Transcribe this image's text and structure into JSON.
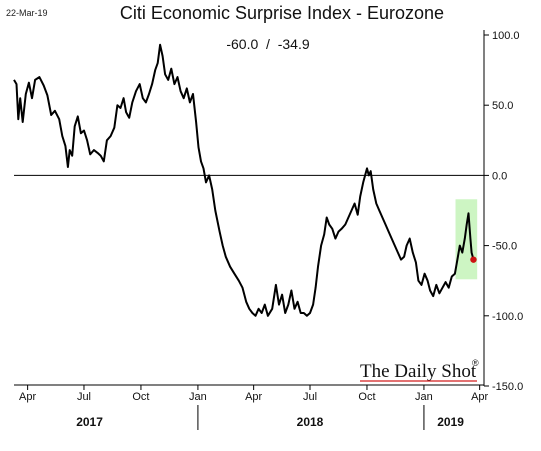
{
  "date_stamp": "22-Mar-19",
  "watermark": "The Daily Shot",
  "watermark_mark": "®",
  "chart_data": {
    "type": "line",
    "title": "Citi Economic Surprise Index - Eurozone",
    "readout": "-60.0  /  -34.9",
    "xlabel": "",
    "ylabel": "",
    "ylim": [
      -150,
      100
    ],
    "yticks": [
      100,
      50,
      0,
      -50,
      -100,
      -150
    ],
    "ytick_labels": [
      "100.0",
      "50.0",
      "0.0",
      "-50.0",
      "-100.0",
      "-150.0"
    ],
    "x_range": [
      "2017-03-10",
      "2019-04-08"
    ],
    "xticks": [
      {
        "date": "2017-04-01",
        "label": "Apr"
      },
      {
        "date": "2017-07-01",
        "label": "Jul"
      },
      {
        "date": "2017-10-01",
        "label": "Oct"
      },
      {
        "date": "2018-01-01",
        "label": "Jan"
      },
      {
        "date": "2018-04-01",
        "label": "Apr"
      },
      {
        "date": "2018-07-01",
        "label": "Jul"
      },
      {
        "date": "2018-10-01",
        "label": "Oct"
      },
      {
        "date": "2019-01-01",
        "label": "Jan"
      },
      {
        "date": "2019-04-01",
        "label": "Apr"
      }
    ],
    "year_labels": [
      {
        "label": "2017",
        "center": "2017-07-10"
      },
      {
        "label": "2018",
        "center": "2018-07-01"
      },
      {
        "label": "2019",
        "center": "2019-02-13"
      }
    ],
    "year_separators": [
      "2018-01-01",
      "2019-01-01"
    ],
    "zero_line": 0,
    "highlight": {
      "x": [
        "2019-02-21",
        "2019-03-28"
      ],
      "y": [
        -74,
        -17
      ],
      "color": "#cdf5c3"
    },
    "series": [
      {
        "color": "#000000",
        "points": [
          [
            "2017-03-10",
            68
          ],
          [
            "2017-03-14",
            65
          ],
          [
            "2017-03-17",
            40
          ],
          [
            "2017-03-20",
            55
          ],
          [
            "2017-03-24",
            38
          ],
          [
            "2017-03-29",
            58
          ],
          [
            "2017-04-03",
            66
          ],
          [
            "2017-04-08",
            55
          ],
          [
            "2017-04-13",
            68
          ],
          [
            "2017-04-20",
            70
          ],
          [
            "2017-04-27",
            64
          ],
          [
            "2017-05-03",
            57
          ],
          [
            "2017-05-09",
            43
          ],
          [
            "2017-05-15",
            46
          ],
          [
            "2017-05-22",
            40
          ],
          [
            "2017-05-27",
            28
          ],
          [
            "2017-06-01",
            21
          ],
          [
            "2017-06-05",
            6
          ],
          [
            "2017-06-08",
            18
          ],
          [
            "2017-06-12",
            14
          ],
          [
            "2017-06-16",
            35
          ],
          [
            "2017-06-21",
            42
          ],
          [
            "2017-06-26",
            30
          ],
          [
            "2017-07-01",
            32
          ],
          [
            "2017-07-06",
            25
          ],
          [
            "2017-07-11",
            15
          ],
          [
            "2017-07-17",
            18
          ],
          [
            "2017-07-23",
            16
          ],
          [
            "2017-07-28",
            14
          ],
          [
            "2017-08-02",
            10
          ],
          [
            "2017-08-07",
            25
          ],
          [
            "2017-08-13",
            28
          ],
          [
            "2017-08-19",
            34
          ],
          [
            "2017-08-24",
            50
          ],
          [
            "2017-08-29",
            48
          ],
          [
            "2017-09-03",
            55
          ],
          [
            "2017-09-07",
            45
          ],
          [
            "2017-09-12",
            41
          ],
          [
            "2017-09-17",
            52
          ],
          [
            "2017-09-23",
            60
          ],
          [
            "2017-09-29",
            65
          ],
          [
            "2017-10-04",
            55
          ],
          [
            "2017-10-09",
            52
          ],
          [
            "2017-10-14",
            58
          ],
          [
            "2017-10-19",
            65
          ],
          [
            "2017-10-24",
            75
          ],
          [
            "2017-10-28",
            80
          ],
          [
            "2017-11-01",
            93
          ],
          [
            "2017-11-05",
            85
          ],
          [
            "2017-11-09",
            72
          ],
          [
            "2017-11-14",
            68
          ],
          [
            "2017-11-19",
            76
          ],
          [
            "2017-11-24",
            65
          ],
          [
            "2017-11-29",
            70
          ],
          [
            "2017-12-04",
            60
          ],
          [
            "2017-12-09",
            55
          ],
          [
            "2017-12-14",
            62
          ],
          [
            "2017-12-19",
            52
          ],
          [
            "2017-12-24",
            58
          ],
          [
            "2017-12-29",
            38
          ],
          [
            "2018-01-02",
            20
          ],
          [
            "2018-01-06",
            10
          ],
          [
            "2018-01-10",
            5
          ],
          [
            "2018-01-14",
            -5
          ],
          [
            "2018-01-19",
            0
          ],
          [
            "2018-01-24",
            -10
          ],
          [
            "2018-01-29",
            -25
          ],
          [
            "2018-02-05",
            -40
          ],
          [
            "2018-02-10",
            -50
          ],
          [
            "2018-02-15",
            -58
          ],
          [
            "2018-02-22",
            -65
          ],
          [
            "2018-03-01",
            -70
          ],
          [
            "2018-03-08",
            -75
          ],
          [
            "2018-03-14",
            -80
          ],
          [
            "2018-03-20",
            -90
          ],
          [
            "2018-03-25",
            -95
          ],
          [
            "2018-03-30",
            -98
          ],
          [
            "2018-04-04",
            -100
          ],
          [
            "2018-04-09",
            -95
          ],
          [
            "2018-04-14",
            -98
          ],
          [
            "2018-04-19",
            -92
          ],
          [
            "2018-04-24",
            -100
          ],
          [
            "2018-05-01",
            -95
          ],
          [
            "2018-05-07",
            -78
          ],
          [
            "2018-05-12",
            -92
          ],
          [
            "2018-05-17",
            -85
          ],
          [
            "2018-05-22",
            -98
          ],
          [
            "2018-05-27",
            -92
          ],
          [
            "2018-06-01",
            -82
          ],
          [
            "2018-06-06",
            -95
          ],
          [
            "2018-06-11",
            -90
          ],
          [
            "2018-06-16",
            -98
          ],
          [
            "2018-06-21",
            -98
          ],
          [
            "2018-06-26",
            -100
          ],
          [
            "2018-07-01",
            -98
          ],
          [
            "2018-07-06",
            -92
          ],
          [
            "2018-07-10",
            -80
          ],
          [
            "2018-07-14",
            -65
          ],
          [
            "2018-07-19",
            -50
          ],
          [
            "2018-07-24",
            -42
          ],
          [
            "2018-07-28",
            -30
          ],
          [
            "2018-08-01",
            -35
          ],
          [
            "2018-08-06",
            -38
          ],
          [
            "2018-08-11",
            -45
          ],
          [
            "2018-08-16",
            -40
          ],
          [
            "2018-08-21",
            -38
          ],
          [
            "2018-08-27",
            -35
          ],
          [
            "2018-09-01",
            -30
          ],
          [
            "2018-09-06",
            -25
          ],
          [
            "2018-09-11",
            -20
          ],
          [
            "2018-09-16",
            -28
          ],
          [
            "2018-09-20",
            -15
          ],
          [
            "2018-09-25",
            -5
          ],
          [
            "2018-10-01",
            5
          ],
          [
            "2018-10-04",
            0
          ],
          [
            "2018-10-07",
            3
          ],
          [
            "2018-10-11",
            -10
          ],
          [
            "2018-10-16",
            -20
          ],
          [
            "2018-10-21",
            -25
          ],
          [
            "2018-10-26",
            -30
          ],
          [
            "2018-10-31",
            -35
          ],
          [
            "2018-11-05",
            -40
          ],
          [
            "2018-11-10",
            -45
          ],
          [
            "2018-11-15",
            -50
          ],
          [
            "2018-11-20",
            -55
          ],
          [
            "2018-11-25",
            -60
          ],
          [
            "2018-11-30",
            -58
          ],
          [
            "2018-12-04",
            -50
          ],
          [
            "2018-12-09",
            -45
          ],
          [
            "2018-12-14",
            -55
          ],
          [
            "2018-12-19",
            -62
          ],
          [
            "2018-12-23",
            -75
          ],
          [
            "2018-12-28",
            -78
          ],
          [
            "2019-01-02",
            -70
          ],
          [
            "2019-01-07",
            -75
          ],
          [
            "2019-01-11",
            -82
          ],
          [
            "2019-01-16",
            -86
          ],
          [
            "2019-01-21",
            -78
          ],
          [
            "2019-01-26",
            -84
          ],
          [
            "2019-01-31",
            -80
          ],
          [
            "2019-02-05",
            -76
          ],
          [
            "2019-02-10",
            -80
          ],
          [
            "2019-02-15",
            -72
          ],
          [
            "2019-02-20",
            -70
          ],
          [
            "2019-02-24",
            -60
          ],
          [
            "2019-02-28",
            -50
          ],
          [
            "2019-03-04",
            -55
          ],
          [
            "2019-03-08",
            -45
          ],
          [
            "2019-03-11",
            -35
          ],
          [
            "2019-03-14",
            -27
          ],
          [
            "2019-03-17",
            -45
          ],
          [
            "2019-03-19",
            -55
          ],
          [
            "2019-03-22",
            -60
          ]
        ]
      }
    ],
    "last_point": {
      "date": "2019-03-22",
      "value": -60,
      "color": "#cc1111"
    }
  }
}
